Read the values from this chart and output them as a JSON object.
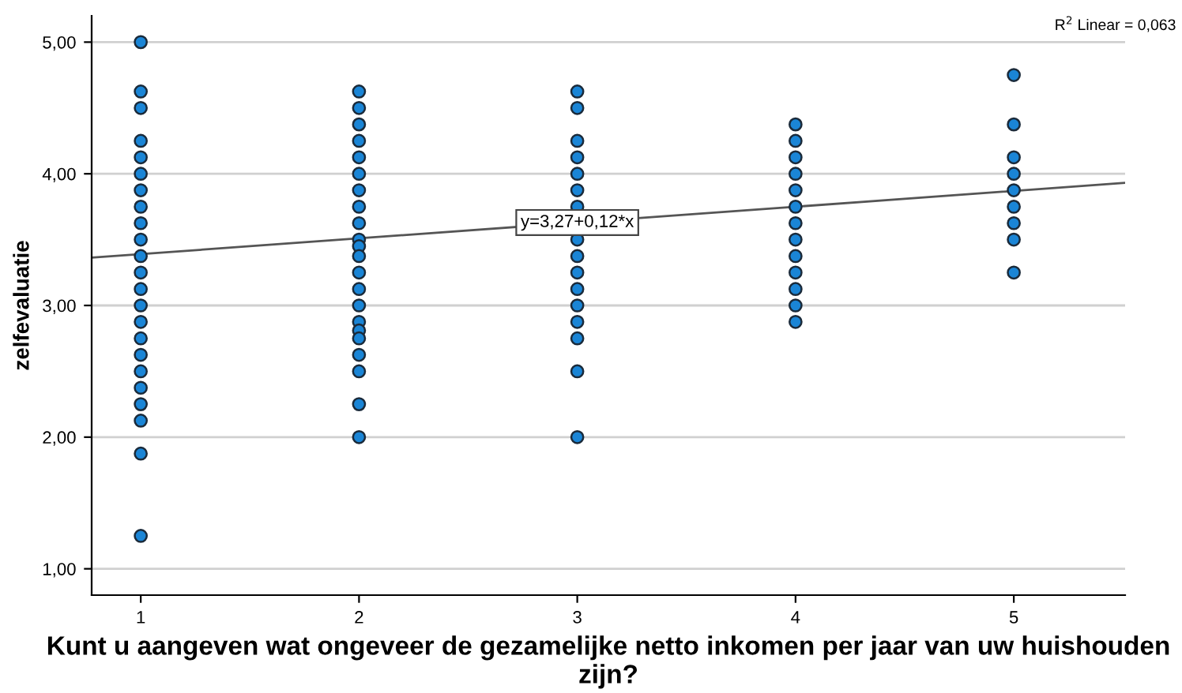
{
  "chart_data": {
    "type": "scatter",
    "xlabel": "Kunt u aangeven wat ongeveer de gezamelijke netto inkomen per jaar van uw huishouden zijn?",
    "ylabel": "zelfevaluatie",
    "series": [
      {
        "color": "#1a85d6",
        "marker": "circle",
        "x": [
          1,
          1,
          1,
          1,
          1,
          1,
          1,
          1,
          1,
          1,
          1,
          1,
          1,
          1,
          1,
          1,
          1,
          1,
          1,
          1,
          1,
          1,
          1,
          2,
          2,
          2,
          2,
          2,
          2,
          2,
          2,
          2,
          2,
          2,
          2,
          2,
          2,
          2,
          2,
          2,
          2,
          2,
          2,
          2,
          2,
          3,
          3,
          3,
          3,
          3,
          3,
          3,
          3,
          3,
          3,
          3,
          3,
          3,
          3,
          3,
          3,
          4,
          4,
          4,
          4,
          4,
          4,
          4,
          4,
          4,
          4,
          4,
          4,
          4,
          5,
          5,
          5,
          5,
          5,
          5,
          5,
          5,
          5
        ],
        "values": [
          5.0,
          4.625,
          4.5,
          4.25,
          4.125,
          4.0,
          3.875,
          3.75,
          3.625,
          3.5,
          3.375,
          3.25,
          3.125,
          3.0,
          2.875,
          2.75,
          2.625,
          2.5,
          2.375,
          2.25,
          2.125,
          1.875,
          1.25,
          4.625,
          4.5,
          4.375,
          4.25,
          4.125,
          4.0,
          3.875,
          3.75,
          3.625,
          3.5,
          3.45,
          3.375,
          3.25,
          3.125,
          3.0,
          2.875,
          2.81,
          2.75,
          2.625,
          2.5,
          2.25,
          2.0,
          4.625,
          4.5,
          4.25,
          4.125,
          4.0,
          3.875,
          3.75,
          3.5,
          3.375,
          3.25,
          3.125,
          3.0,
          2.875,
          2.75,
          2.5,
          2.0,
          4.375,
          4.25,
          4.125,
          4.0,
          3.875,
          3.75,
          3.625,
          3.5,
          3.375,
          3.25,
          3.125,
          3.0,
          2.875,
          4.75,
          4.375,
          4.125,
          4.0,
          3.875,
          3.75,
          3.625,
          3.5,
          3.25
        ]
      },
      {
        "type": "line",
        "color": "#555555",
        "marker": "none",
        "line_style": "solid",
        "x": [
          0.775,
          5.51
        ],
        "values": [
          3.363,
          3.931
        ]
      }
    ],
    "annotations": [
      {
        "text": "y=3,27+0,12*x",
        "x": 3,
        "y": 3.63
      },
      "R$^{2}$ Linear = 0,063"
    ],
    "xlim": [
      0.775,
      5.51
    ],
    "xticks": [
      1,
      2,
      3,
      4,
      5
    ],
    "ylim": [
      0.8,
      5.2
    ],
    "yticks": [
      {
        "value": 1,
        "label": "1,00"
      },
      {
        "value": 2,
        "label": "2,00"
      },
      {
        "value": 3,
        "label": "3,00"
      },
      {
        "value": 4,
        "label": "4,00"
      },
      {
        "value": 5,
        "label": "5,00"
      }
    ],
    "grid": "y",
    "legend": false
  }
}
